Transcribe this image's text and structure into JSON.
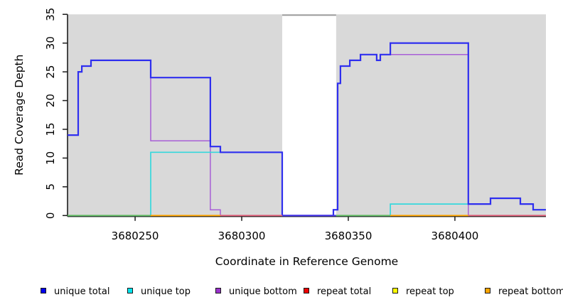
{
  "chart_data": {
    "type": "line",
    "subtype": "step-coverage-plot",
    "title": "",
    "xlabel": "Coordinate in Reference Genome",
    "ylabel": "Read Coverage Depth",
    "xlim": [
      3680218.3,
      3680442.7
    ],
    "ylim": [
      0,
      35
    ],
    "xticks": [
      3680250,
      3680300,
      3680350,
      3680400
    ],
    "yticks": [
      0,
      5,
      10,
      15,
      20,
      25,
      30,
      35
    ],
    "grid": false,
    "plot_background": "#d9d9d9",
    "highlight_band": {
      "x0": 3680319,
      "x1": 3680344.3,
      "color": "#ffffff",
      "top_edge_color": "#9c9c9c"
    },
    "axis_color": "#1c1c1c",
    "series": [
      {
        "name": "unique total",
        "color": "#2f2fef",
        "width": 2.2,
        "steps": [
          [
            3680218.3,
            14
          ],
          [
            3680223.3,
            25
          ],
          [
            3680225,
            26
          ],
          [
            3680229.3,
            27
          ],
          [
            3680257.3,
            24
          ],
          [
            3680285.3,
            12
          ],
          [
            3680290,
            11
          ],
          [
            3680319,
            0
          ],
          [
            3680343,
            1
          ],
          [
            3680345,
            23
          ],
          [
            3680346.3,
            26
          ],
          [
            3680350.7,
            27
          ],
          [
            3680355.7,
            28
          ],
          [
            3680363.3,
            27
          ],
          [
            3680365,
            28
          ],
          [
            3680369.7,
            30
          ],
          [
            3680406.3,
            2
          ],
          [
            3680416.7,
            3
          ],
          [
            3680430.7,
            2
          ],
          [
            3680436.7,
            1
          ],
          [
            3680442.7,
            1
          ]
        ]
      },
      {
        "name": "unique top",
        "color": "#36d8dc",
        "width": 1.7,
        "steps": [
          [
            3680218.3,
            0
          ],
          [
            3680257.3,
            11
          ],
          [
            3680319,
            0
          ],
          [
            3680369.7,
            2
          ],
          [
            3680416.7,
            3
          ],
          [
            3680430.7,
            2
          ],
          [
            3680436.7,
            1
          ],
          [
            3680442.7,
            1
          ]
        ]
      },
      {
        "name": "unique bottom",
        "color": "#a85fd6",
        "width": 1.5,
        "steps": [
          [
            3680218.3,
            14
          ],
          [
            3680223.3,
            25
          ],
          [
            3680225,
            26
          ],
          [
            3680229.3,
            27
          ],
          [
            3680257.3,
            13
          ],
          [
            3680285.3,
            1
          ],
          [
            3680290,
            0
          ],
          [
            3680343,
            1
          ],
          [
            3680345,
            23
          ],
          [
            3680346.3,
            26
          ],
          [
            3680350.7,
            27
          ],
          [
            3680355.7,
            28
          ],
          [
            3680363.3,
            27
          ],
          [
            3680365,
            28
          ],
          [
            3680369.7,
            28
          ],
          [
            3680406.3,
            0
          ],
          [
            3680442.7,
            0
          ]
        ]
      },
      {
        "name": "repeat total",
        "color": "#e02020",
        "width": 1.5,
        "steps": [
          [
            3680218.3,
            0
          ],
          [
            3680442.7,
            0
          ]
        ]
      },
      {
        "name": "repeat top",
        "color": "#ffff00",
        "width": 1.5,
        "steps": [
          [
            3680218.3,
            0
          ],
          [
            3680442.7,
            0
          ]
        ]
      },
      {
        "name": "repeat bottom",
        "color": "#ffa500",
        "width": 1.5,
        "steps": [
          [
            3680218.3,
            0
          ],
          [
            3680442.7,
            0
          ]
        ]
      }
    ],
    "baseline_segments": [
      {
        "x0": 3680218.3,
        "x1": 3680257.3,
        "color": "#63bd63"
      },
      {
        "x0": 3680257.3,
        "x1": 3680290.0,
        "color": "#ffa500"
      },
      {
        "x0": 3680290.0,
        "x1": 3680319.0,
        "color": "#e0607a"
      },
      {
        "x0": 3680319.0,
        "x1": 3680344.3,
        "color": "#4b38e8"
      },
      {
        "x0": 3680344.3,
        "x1": 3680369.7,
        "color": "#63bd63"
      },
      {
        "x0": 3680369.7,
        "x1": 3680406.3,
        "color": "#ffa500"
      },
      {
        "x0": 3680406.3,
        "x1": 3680442.7,
        "color": "#e0607a"
      }
    ]
  },
  "legend": {
    "items": [
      {
        "label": "unique total",
        "color": "#0000ee"
      },
      {
        "label": "unique top",
        "color": "#00e5ee"
      },
      {
        "label": "unique bottom",
        "color": "#9a32cd"
      },
      {
        "label": "repeat total",
        "color": "#ee0000"
      },
      {
        "label": "repeat top",
        "color": "#ffff00"
      },
      {
        "label": "repeat bottom",
        "color": "#ffa500"
      }
    ]
  }
}
